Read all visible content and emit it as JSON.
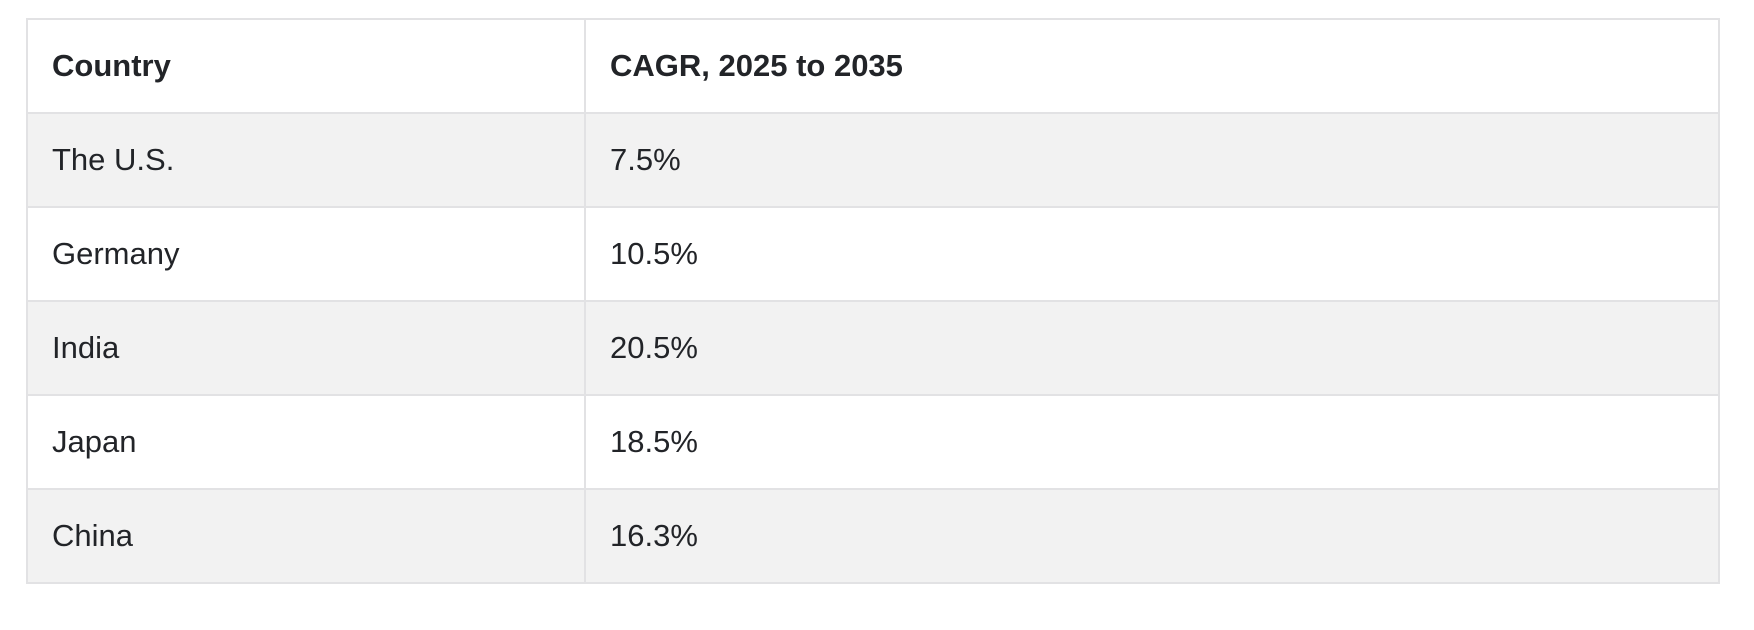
{
  "table": {
    "headers": {
      "country": "Country",
      "cagr": "CAGR, 2025 to 2035"
    },
    "rows": [
      {
        "country": "The U.S.",
        "cagr": "7.5%"
      },
      {
        "country": "Germany",
        "cagr": "10.5%"
      },
      {
        "country": "India",
        "cagr": "20.5%"
      },
      {
        "country": "Japan",
        "cagr": "18.5%"
      },
      {
        "country": "China",
        "cagr": "16.3%"
      }
    ]
  }
}
